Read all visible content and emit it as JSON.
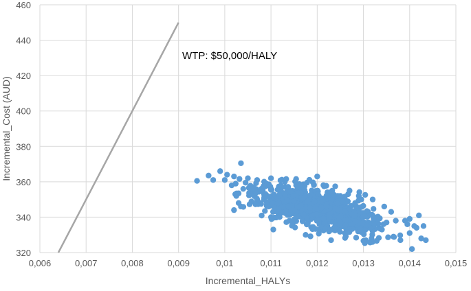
{
  "chart_data": {
    "type": "scatter",
    "xlabel": "Incremental_HALYs",
    "ylabel": "Incremental_Cost (AUD)",
    "xlim": [
      0.006,
      0.015
    ],
    "ylim": [
      320,
      460
    ],
    "x_ticks": [
      0.006,
      0.007,
      0.008,
      0.009,
      0.01,
      0.011,
      0.012,
      0.013,
      0.014,
      0.015
    ],
    "x_tick_labels": [
      "0,006",
      "0,007",
      "0,008",
      "0,009",
      "0,01",
      "0,011",
      "0,012",
      "0,013",
      "0,014",
      "0,015"
    ],
    "y_ticks": [
      320,
      340,
      360,
      380,
      400,
      420,
      440,
      460
    ],
    "y_tick_labels": [
      "320",
      "340",
      "360",
      "380",
      "400",
      "420",
      "440",
      "460"
    ],
    "grid": "vertical and horizontal",
    "legend": "none",
    "colors": {
      "points": "#5b9bd5",
      "wtp_line": "#a6a6a6",
      "grid": "#d9d9d9"
    },
    "annotations": [
      {
        "text": "WTP: $50,000/HALY",
        "x": 0.0091,
        "y": 441
      }
    ],
    "series": [
      {
        "kind": "line",
        "x": [
          0.0064,
          0.009
        ],
        "y": [
          320,
          450
        ]
      },
      {
        "kind": "scatter",
        "points": [
          [
            0.0094,
            360.5
          ],
          [
            0.00965,
            363.5
          ],
          [
            0.00975,
            361
          ],
          [
            0.0099,
            366
          ],
          [
            0.01005,
            364
          ],
          [
            0.01,
            361
          ],
          [
            0.01015,
            358
          ],
          [
            0.0102,
            363
          ],
          [
            0.01035,
            370.5
          ],
          [
            0.0104,
            356
          ],
          [
            0.01045,
            359.5
          ],
          [
            0.01025,
            352
          ],
          [
            0.0103,
            348
          ],
          [
            0.0102,
            344
          ],
          [
            0.01035,
            346
          ],
          [
            0.0105,
            362
          ],
          [
            0.0106,
            357
          ],
          [
            0.0107,
            350
          ],
          [
            0.0107,
            361
          ],
          [
            0.01085,
            353
          ],
          [
            0.0109,
            359
          ],
          [
            0.011,
            362
          ],
          [
            0.01095,
            346
          ],
          [
            0.011,
            340
          ],
          [
            0.01105,
            333
          ],
          [
            0.01115,
            345
          ],
          [
            0.0112,
            355
          ],
          [
            0.0113,
            360
          ],
          [
            0.01135,
            349
          ],
          [
            0.0114,
            338
          ],
          [
            0.0115,
            342
          ],
          [
            0.01155,
            355
          ],
          [
            0.0116,
            358
          ],
          [
            0.0117,
            340
          ],
          [
            0.01175,
            330
          ],
          [
            0.0118,
            348
          ],
          [
            0.0119,
            352
          ],
          [
            0.012,
            363
          ],
          [
            0.01205,
            336
          ],
          [
            0.0121,
            343
          ],
          [
            0.0122,
            350
          ],
          [
            0.0123,
            327
          ],
          [
            0.01235,
            339
          ],
          [
            0.0124,
            345
          ],
          [
            0.0125,
            352
          ],
          [
            0.0126,
            331
          ],
          [
            0.01265,
            342
          ],
          [
            0.0127,
            355
          ],
          [
            0.0128,
            338
          ],
          [
            0.01285,
            346
          ],
          [
            0.0129,
            352
          ],
          [
            0.013,
            336
          ],
          [
            0.01305,
            327
          ],
          [
            0.0131,
            343
          ],
          [
            0.0132,
            350
          ],
          [
            0.0133,
            340
          ],
          [
            0.0134,
            333
          ],
          [
            0.01345,
            346
          ],
          [
            0.0135,
            337
          ],
          [
            0.0136,
            343
          ],
          [
            0.01365,
            329
          ],
          [
            0.0137,
            338
          ],
          [
            0.0138,
            327
          ],
          [
            0.0139,
            338
          ],
          [
            0.01395,
            336
          ],
          [
            0.014,
            331
          ],
          [
            0.01405,
            322
          ],
          [
            0.0141,
            335
          ],
          [
            0.0142,
            341
          ],
          [
            0.01425,
            328
          ],
          [
            0.0143,
            335
          ],
          [
            0.01435,
            327
          ],
          [
            0.01415,
            334
          ],
          [
            0.014,
            339
          ]
        ]
      }
    ]
  }
}
